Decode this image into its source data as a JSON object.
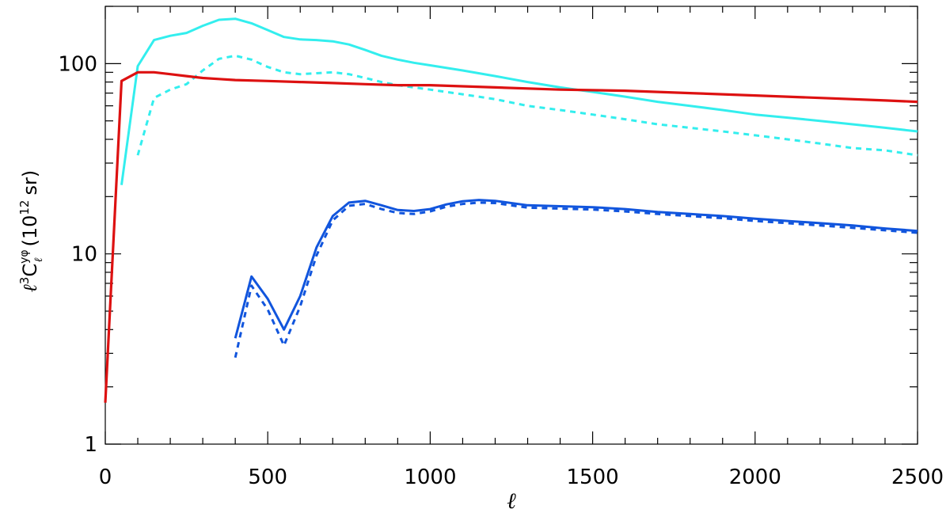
{
  "chart_data": {
    "type": "line",
    "xlabel": "ℓ",
    "ylabel": {
      "ell": "ℓ",
      "power": "3",
      "C": "C",
      "sup": "yφ",
      "sub": "ℓ",
      "paren_open": "(10",
      "unit_power": "12",
      "unit": "sr)"
    },
    "xlim": [
      0,
      2500
    ],
    "ylim": [
      1,
      200
    ],
    "yscale": "log",
    "x_ticks": [
      0,
      500,
      1000,
      1500,
      2000,
      2500
    ],
    "x_tick_labels": [
      "0",
      "500",
      "1000",
      "1500",
      "2000",
      "2500"
    ],
    "y_ticks": [
      1,
      10,
      100
    ],
    "y_tick_labels": [
      "1",
      "10",
      "100"
    ],
    "grid": false,
    "series": [
      {
        "color": "#33EEEE",
        "style": "solid",
        "x": [
          50,
          100,
          150,
          200,
          250,
          300,
          350,
          400,
          450,
          500,
          550,
          600,
          650,
          700,
          750,
          800,
          850,
          900,
          950,
          1000,
          1100,
          1200,
          1300,
          1400,
          1500,
          1600,
          1700,
          1800,
          1900,
          2000,
          2100,
          2200,
          2300,
          2400,
          2500
        ],
        "y": [
          23,
          97,
          133,
          140,
          145,
          158,
          170,
          172,
          163,
          150,
          138,
          134,
          133,
          131,
          126,
          118,
          110,
          105,
          101,
          98,
          92,
          86,
          80,
          75,
          71,
          67,
          63,
          60,
          57,
          54,
          52,
          50,
          48,
          46,
          44
        ]
      },
      {
        "color": "#33EEEE",
        "style": "dashed",
        "x": [
          100,
          150,
          200,
          250,
          300,
          350,
          400,
          450,
          500,
          550,
          600,
          650,
          700,
          750,
          800,
          850,
          900,
          950,
          1000,
          1100,
          1200,
          1300,
          1400,
          1500,
          1600,
          1700,
          1800,
          1900,
          2000,
          2100,
          2200,
          2300,
          2400,
          2500
        ],
        "y": [
          33,
          66,
          73,
          78,
          92,
          106,
          110,
          105,
          96,
          90,
          88,
          89,
          90,
          88,
          84,
          80,
          77,
          75,
          73,
          69,
          65,
          60,
          57,
          54,
          51,
          48,
          46,
          44,
          42,
          40,
          38,
          36,
          35,
          33
        ]
      },
      {
        "color": "#DD1111",
        "style": "solid",
        "x": [
          0,
          50,
          100,
          150,
          200,
          250,
          300,
          350,
          400,
          500,
          600,
          700,
          800,
          900,
          1000,
          1200,
          1400,
          1600,
          1800,
          2000,
          2200,
          2400,
          2500
        ],
        "y": [
          1.65,
          81,
          90,
          90,
          88,
          86,
          84,
          83,
          82,
          81,
          80,
          79,
          78,
          77,
          77,
          75,
          73,
          72,
          70,
          68,
          66,
          64,
          63
        ]
      },
      {
        "color": "#1155DD",
        "style": "solid",
        "x": [
          400,
          450,
          500,
          550,
          600,
          650,
          700,
          750,
          800,
          850,
          900,
          950,
          1000,
          1050,
          1100,
          1150,
          1200,
          1300,
          1400,
          1500,
          1600,
          1700,
          1800,
          1900,
          2000,
          2100,
          2200,
          2300,
          2400,
          2500
        ],
        "y": [
          3.6,
          7.6,
          5.8,
          4.0,
          6.0,
          10.8,
          15.8,
          18.6,
          19.0,
          18.0,
          17.0,
          16.8,
          17.2,
          18.2,
          18.9,
          19.2,
          19.0,
          18.0,
          17.8,
          17.6,
          17.2,
          16.6,
          16.2,
          15.8,
          15.3,
          14.9,
          14.5,
          14.1,
          13.6,
          13.2
        ]
      },
      {
        "color": "#1155DD",
        "style": "dashed",
        "x": [
          400,
          450,
          500,
          550,
          600,
          650,
          700,
          750,
          800,
          850,
          900,
          950,
          1000,
          1050,
          1100,
          1150,
          1200,
          1300,
          1400,
          1500,
          1600,
          1700,
          1800,
          1900,
          2000,
          2100,
          2200,
          2300,
          2400,
          2500
        ],
        "y": [
          2.85,
          6.8,
          5.1,
          3.3,
          5.3,
          9.8,
          15.0,
          17.9,
          18.3,
          17.2,
          16.4,
          16.2,
          16.7,
          17.7,
          18.3,
          18.6,
          18.5,
          17.5,
          17.3,
          17.1,
          16.7,
          16.2,
          15.8,
          15.4,
          14.9,
          14.5,
          14.1,
          13.7,
          13.3,
          12.9
        ]
      }
    ]
  }
}
